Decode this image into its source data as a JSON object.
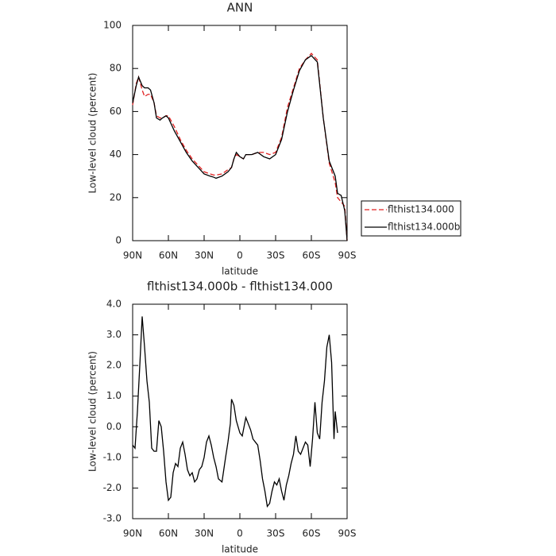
{
  "chart_data": [
    {
      "type": "line",
      "title": "ANN",
      "xlabel": "latitude",
      "ylabel": "Low-level cloud (percent)",
      "x": [
        90,
        87,
        85,
        82,
        80,
        77,
        75,
        72,
        70,
        67,
        65,
        62,
        60,
        55,
        50,
        45,
        40,
        35,
        30,
        25,
        22,
        20,
        15,
        10,
        7,
        5,
        3,
        0,
        -3,
        -5,
        -10,
        -15,
        -20,
        -25,
        -30,
        -35,
        -40,
        -45,
        -50,
        -55,
        -60,
        -65,
        -70,
        -75,
        -80,
        -82,
        -85,
        -88,
        -90
      ],
      "series": [
        {
          "name": "flthist134.000",
          "color": "#e02020",
          "style": "dashed",
          "values": [
            63,
            73,
            76,
            70,
            67,
            68,
            68,
            64,
            58,
            57,
            57,
            58,
            58,
            53,
            47,
            42,
            38,
            35,
            32,
            31,
            30.5,
            30.5,
            31,
            33,
            34,
            38,
            40,
            39,
            38,
            40,
            40,
            41,
            41,
            40,
            41,
            48,
            62,
            71,
            80,
            84,
            87,
            84,
            57,
            36,
            27,
            20,
            18,
            16,
            0
          ]
        },
        {
          "name": "flthist134.000b",
          "color": "#000000",
          "style": "solid",
          "values": [
            64,
            72,
            76,
            72,
            71,
            71,
            70,
            64,
            57,
            56,
            57,
            58,
            57,
            51,
            46,
            41,
            37,
            34,
            31,
            30,
            29.5,
            29,
            30,
            32,
            34,
            38,
            41,
            39,
            38,
            40,
            40,
            41,
            39,
            38,
            40,
            47,
            60,
            70,
            79,
            84,
            86,
            83,
            57,
            37,
            30,
            22,
            21,
            14,
            0
          ]
        }
      ],
      "xlim": [
        90,
        -90
      ],
      "xticks": [
        {
          "value": 90,
          "label": "90N"
        },
        {
          "value": 60,
          "label": "60N"
        },
        {
          "value": 30,
          "label": "30N"
        },
        0,
        {
          "value": -30,
          "label": "30S"
        },
        {
          "value": -60,
          "label": "60S"
        },
        {
          "value": -90,
          "label": "90S"
        }
      ],
      "ylim": [
        0,
        100
      ],
      "yticks": [
        0,
        20,
        40,
        60,
        80,
        100
      ],
      "legend": "right"
    },
    {
      "type": "line",
      "title": "flthist134.000b - flthist134.000",
      "xlabel": "latitude",
      "ylabel": "Low-level cloud (percent)",
      "x": [
        90,
        88,
        86,
        84,
        82,
        80,
        78,
        76,
        74,
        72,
        70,
        68,
        66,
        64,
        62,
        60,
        58,
        56,
        54,
        52,
        50,
        48,
        46,
        44,
        42,
        40,
        38,
        36,
        34,
        32,
        30,
        28,
        26,
        24,
        22,
        20,
        18,
        15,
        12,
        10,
        8,
        7,
        5,
        3,
        0,
        -2,
        -4,
        -5,
        -7,
        -9,
        -11,
        -13,
        -15,
        -17,
        -19,
        -21,
        -23,
        -25,
        -27,
        -29,
        -31,
        -33,
        -35,
        -37,
        -39,
        -41,
        -43,
        -45,
        -47,
        -49,
        -51,
        -53,
        -55,
        -57,
        -59,
        -61,
        -63,
        -65,
        -67,
        -69,
        -71,
        -73,
        -75,
        -77,
        -79,
        -80,
        -82
      ],
      "series": [
        {
          "color": "#000000",
          "style": "solid",
          "values": [
            -0.6,
            -0.7,
            0.5,
            2.0,
            3.6,
            2.6,
            1.5,
            0.8,
            -0.7,
            -0.8,
            -0.8,
            0.2,
            0,
            -0.8,
            -1.8,
            -2.4,
            -2.3,
            -1.5,
            -1.2,
            -1.3,
            -0.7,
            -0.5,
            -0.9,
            -1.4,
            -1.6,
            -1.5,
            -1.8,
            -1.7,
            -1.4,
            -1.3,
            -1.0,
            -0.5,
            -0.3,
            -0.6,
            -1.0,
            -1.3,
            -1.7,
            -1.8,
            -1.0,
            -0.5,
            0.1,
            0.9,
            0.7,
            0.2,
            -0.2,
            -0.3,
            0.1,
            0.3,
            0.1,
            -0.1,
            -0.4,
            -0.5,
            -0.6,
            -1.1,
            -1.7,
            -2.1,
            -2.6,
            -2.5,
            -2.1,
            -1.8,
            -1.9,
            -1.7,
            -2.1,
            -2.4,
            -1.9,
            -1.6,
            -1.2,
            -0.9,
            -0.3,
            -0.8,
            -0.9,
            -0.7,
            -0.5,
            -0.6,
            -1.3,
            -0.4,
            0.8,
            -0.2,
            -0.4,
            0.8,
            1.5,
            2.6,
            3.0,
            2.1,
            -0.4,
            0.5,
            -0.2
          ]
        }
      ],
      "xlim": [
        90,
        -90
      ],
      "xticks": [
        {
          "value": 90,
          "label": "90N"
        },
        {
          "value": 60,
          "label": "60N"
        },
        {
          "value": 30,
          "label": "30N"
        },
        0,
        {
          "value": -30,
          "label": "30S"
        },
        {
          "value": -60,
          "label": "60S"
        },
        {
          "value": -90,
          "label": "90S"
        }
      ],
      "ylim": [
        -3,
        4
      ],
      "yticks": [
        {
          "value": -3,
          "label": "-3.0"
        },
        {
          "value": -2,
          "label": "-2.0"
        },
        {
          "value": -1,
          "label": "-1.0"
        },
        {
          "value": 0,
          "label": "0.0"
        },
        {
          "value": 1,
          "label": "1.0"
        },
        {
          "value": 2,
          "label": "2.0"
        },
        {
          "value": 3,
          "label": "3.0"
        },
        {
          "value": 4,
          "label": "4.0"
        }
      ]
    }
  ]
}
